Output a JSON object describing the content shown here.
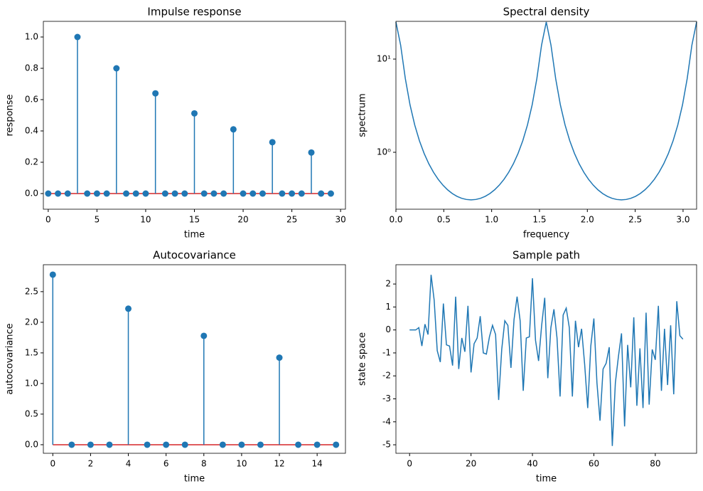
{
  "chart_data": [
    {
      "type": "stem",
      "title": "Impulse response",
      "xlabel": "time",
      "ylabel": "response",
      "x": [
        0,
        1,
        2,
        3,
        4,
        5,
        6,
        7,
        8,
        9,
        10,
        11,
        12,
        13,
        14,
        15,
        16,
        17,
        18,
        19,
        20,
        21,
        22,
        23,
        24,
        25,
        26,
        27,
        28,
        29
      ],
      "values": [
        0,
        0,
        0,
        1,
        0,
        0,
        0,
        0.8,
        0,
        0,
        0,
        0.64,
        0,
        0,
        0,
        0.512,
        0,
        0,
        0,
        0.41,
        0,
        0,
        0,
        0.328,
        0,
        0,
        0,
        0.262,
        0,
        0
      ],
      "color": "#1f77b4",
      "baseline_color": "#d62728",
      "xlim": [
        -0.5,
        30.5
      ],
      "ylim": [
        -0.1,
        1.1
      ],
      "xticks": [
        0,
        5,
        10,
        15,
        20,
        25,
        30
      ],
      "yticks": [
        {
          "value": 0,
          "label": "0.0"
        },
        0.2,
        0.4,
        0.6,
        0.8,
        {
          "value": 1,
          "label": "1.0"
        }
      ]
    },
    {
      "type": "line",
      "title": "Spectral density",
      "xlabel": "frequency",
      "ylabel": "spectrum",
      "yscale": "log",
      "x": [
        0,
        0.0491,
        0.0982,
        0.1473,
        0.1963,
        0.2454,
        0.2945,
        0.3436,
        0.3927,
        0.4418,
        0.4909,
        0.54,
        0.589,
        0.6381,
        0.6872,
        0.7363,
        0.7854,
        0.8345,
        0.8836,
        0.9327,
        0.9817,
        1.0308,
        1.0799,
        1.129,
        1.1781,
        1.2272,
        1.2763,
        1.3254,
        1.3744,
        1.4235,
        1.4726,
        1.5217,
        1.5708,
        1.6199,
        1.669,
        1.7181,
        1.7671,
        1.8162,
        1.8653,
        1.9144,
        1.9635,
        2.0126,
        2.0617,
        2.1108,
        2.1598,
        2.2089,
        2.258,
        2.3071,
        2.3562,
        2.4053,
        2.4544,
        2.5035,
        2.5525,
        2.6016,
        2.6507,
        2.6998,
        2.7489,
        2.798,
        2.8471,
        2.8962,
        2.9452,
        2.9943,
        3.0434,
        3.0925,
        3.1416
      ],
      "values": [
        25,
        14.14,
        6.181,
        3.229,
        1.966,
        1.331,
        0.973,
        0.7531,
        0.6098,
        0.5123,
        0.444,
        0.3954,
        0.3608,
        0.3367,
        0.3207,
        0.3116,
        0.3086,
        0.3116,
        0.3207,
        0.3367,
        0.3608,
        0.3954,
        0.444,
        0.5123,
        0.6098,
        0.7531,
        0.973,
        1.331,
        1.966,
        3.229,
        6.181,
        14.14,
        25,
        14.14,
        6.181,
        3.229,
        1.966,
        1.331,
        0.973,
        0.7531,
        0.6098,
        0.5123,
        0.444,
        0.3954,
        0.3608,
        0.3367,
        0.3207,
        0.3116,
        0.3086,
        0.3116,
        0.3207,
        0.3367,
        0.3608,
        0.3954,
        0.444,
        0.5123,
        0.6098,
        0.7531,
        0.973,
        1.331,
        1.966,
        3.229,
        6.181,
        14.14,
        25
      ],
      "color": "#1f77b4",
      "xlim": [
        0,
        3.1416
      ],
      "ylim": [
        0.245,
        25.4
      ],
      "xticks": [
        {
          "value": 0,
          "label": "0.0"
        },
        0.5,
        {
          "value": 1,
          "label": "1.0"
        },
        1.5,
        {
          "value": 2,
          "label": "2.0"
        },
        2.5,
        {
          "value": 3,
          "label": "3.0"
        }
      ],
      "yticks": [
        {
          "value": 1,
          "label": "10⁰"
        },
        {
          "value": 10,
          "label": "10¹"
        }
      ]
    },
    {
      "type": "stem",
      "title": "Autocovariance",
      "xlabel": "time",
      "ylabel": "autocovariance",
      "x": [
        0,
        1,
        2,
        3,
        4,
        5,
        6,
        7,
        8,
        9,
        10,
        11,
        12,
        13,
        14,
        15
      ],
      "values": [
        2.778,
        0,
        0,
        0,
        2.222,
        0,
        0,
        0,
        1.778,
        0,
        0,
        0,
        1.422,
        0,
        0,
        0
      ],
      "color": "#1f77b4",
      "baseline_color": "#d62728",
      "xlim": [
        -0.5,
        15.5
      ],
      "ylim": [
        -0.14,
        2.94
      ],
      "xticks": [
        0,
        2,
        4,
        6,
        8,
        10,
        12,
        14
      ],
      "yticks": [
        {
          "value": 0,
          "label": "0.0"
        },
        0.5,
        {
          "value": 1,
          "label": "1.0"
        },
        1.5,
        {
          "value": 2,
          "label": "2.0"
        },
        2.5
      ]
    },
    {
      "type": "line",
      "title": "Sample path",
      "xlabel": "time",
      "ylabel": "state space",
      "x": [
        0,
        1,
        2,
        3,
        4,
        5,
        6,
        7,
        8,
        9,
        10,
        11,
        12,
        13,
        14,
        15,
        16,
        17,
        18,
        19,
        20,
        21,
        22,
        23,
        24,
        25,
        26,
        27,
        28,
        29,
        30,
        31,
        32,
        33,
        34,
        35,
        36,
        37,
        38,
        39,
        40,
        41,
        42,
        43,
        44,
        45,
        46,
        47,
        48,
        49,
        50,
        51,
        52,
        53,
        54,
        55,
        56,
        57,
        58,
        59,
        60,
        61,
        62,
        63,
        64,
        65,
        66,
        67,
        68,
        69,
        70,
        71,
        72,
        73,
        74,
        75,
        76,
        77,
        78,
        79,
        80,
        81,
        82,
        83,
        84,
        85,
        86,
        87,
        88,
        89
      ],
      "values": [
        0,
        0,
        0,
        0.1,
        -0.7,
        0.25,
        -0.2,
        2.4,
        1.3,
        -0.9,
        -1.4,
        1.15,
        -0.65,
        -0.7,
        -1.55,
        1.45,
        -1.7,
        -0.35,
        -0.95,
        1.05,
        -1.85,
        -0.6,
        -0.35,
        0.6,
        -1,
        -1.05,
        -0.3,
        0.2,
        -0.2,
        -3.05,
        -0.85,
        0.4,
        0.2,
        -1.65,
        0.45,
        1.45,
        0.4,
        -2.65,
        -0.35,
        -0.3,
        2.25,
        -0.45,
        -1.35,
        0.2,
        1.4,
        -2.1,
        0.1,
        0.9,
        -0.35,
        -2.9,
        0.65,
        0.95,
        0.1,
        -2.9,
        0.4,
        -0.75,
        0.05,
        -1.5,
        -3.4,
        -0.7,
        0.5,
        -2.3,
        -3.95,
        -1.7,
        -1.45,
        -0.75,
        -5.05,
        -2.3,
        -1.15,
        -0.15,
        -4.2,
        -0.65,
        -2.5,
        0.55,
        -3.3,
        -0.8,
        -3.4,
        0.75,
        -3.25,
        -0.85,
        -1.3,
        1.05,
        -2.65,
        0.05,
        -2.4,
        0.2,
        -2.8,
        1.25,
        -0.25,
        -0.4
      ],
      "color": "#1f77b4",
      "xlim": [
        -4.45,
        93.45
      ],
      "ylim": [
        -5.37,
        2.84
      ],
      "xticks": [
        0,
        20,
        40,
        60,
        80
      ],
      "yticks": [
        -5,
        -4,
        -3,
        -2,
        -1,
        0,
        1,
        2
      ]
    }
  ]
}
